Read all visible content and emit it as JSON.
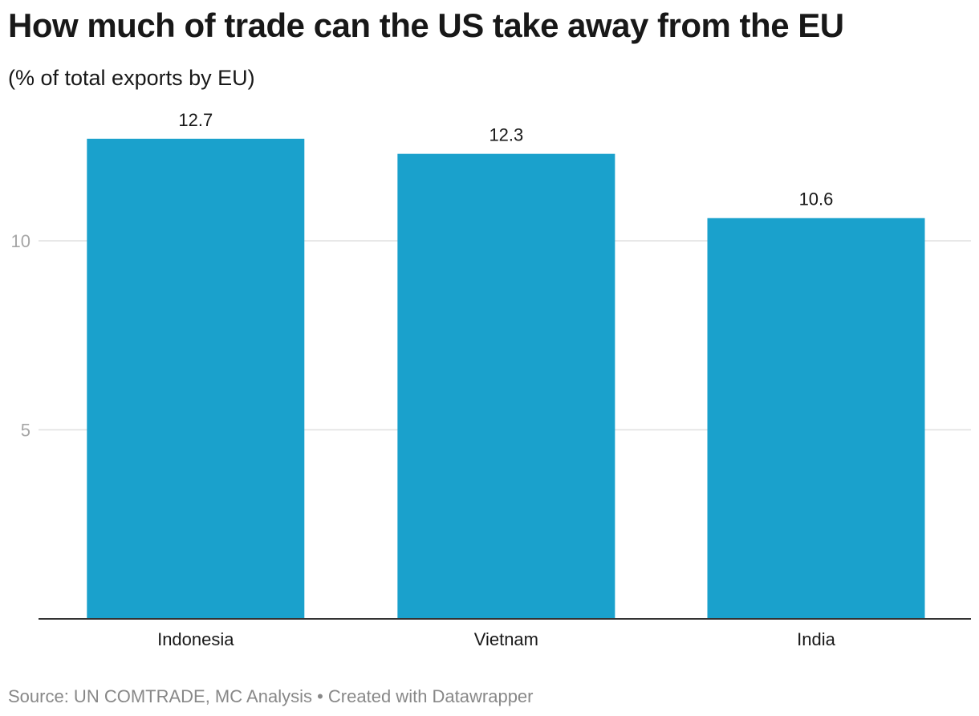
{
  "title": "How much of trade can the US take away from the EU",
  "subtitle": "(% of total exports by EU)",
  "footer": {
    "source": "Source: UN COMTRADE, MC Analysis",
    "separator": "•",
    "credit": "Created with Datawrapper"
  },
  "colors": {
    "bar": "#1aa1cc",
    "grid": "#e0e0e0",
    "axis": "#333333"
  },
  "chart_data": {
    "type": "bar",
    "title": "How much of trade can the US take away from the EU",
    "subtitle": "(% of total exports by EU)",
    "xlabel": "",
    "ylabel": "",
    "categories": [
      "Indonesia",
      "Vietnam",
      "India"
    ],
    "values": [
      12.7,
      12.3,
      10.6
    ],
    "value_labels": [
      "12.7",
      "12.3",
      "10.6"
    ],
    "yticks": [
      5,
      10
    ],
    "ytick_labels": [
      "5",
      "10"
    ],
    "ylim": [
      0,
      13.6
    ],
    "grid": true,
    "legend": "none"
  }
}
